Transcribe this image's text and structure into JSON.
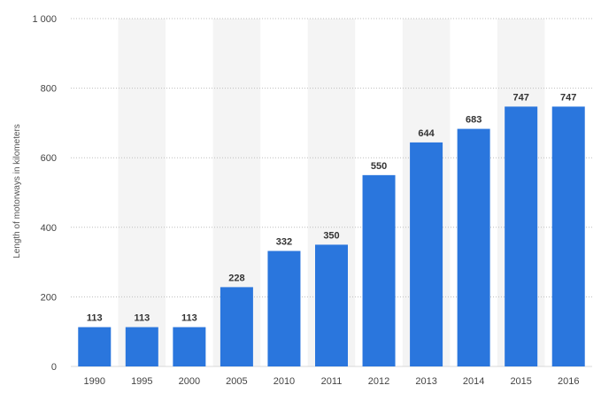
{
  "chart_data": {
    "type": "bar",
    "categories": [
      "1990",
      "1995",
      "2000",
      "2005",
      "2010",
      "2011",
      "2012",
      "2013",
      "2014",
      "2015",
      "2016"
    ],
    "values": [
      113,
      113,
      113,
      228,
      332,
      350,
      550,
      644,
      683,
      747,
      747
    ],
    "data_labels": [
      "113",
      "113",
      "113",
      "228",
      "332",
      "350",
      "550",
      "644",
      "683",
      "747",
      "747"
    ],
    "title": "",
    "xlabel": "",
    "ylabel": "Length of motorways in kilometers",
    "ylim": [
      0,
      1000
    ],
    "yticks": [
      0,
      200,
      400,
      600,
      800,
      1000
    ],
    "ytick_labels": [
      "0",
      "200",
      "400",
      "600",
      "800",
      "1 000"
    ],
    "grid": true,
    "legend": "none",
    "bar_color": "#2a76dd",
    "stripe_color": "#f4f4f4"
  }
}
